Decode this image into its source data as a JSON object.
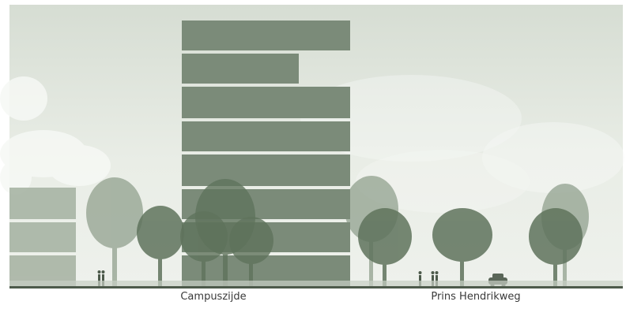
{
  "labels": {
    "left": "Campuszijde",
    "right": "Prins Hendrikweg"
  },
  "colors": {
    "building": "#7b8b79",
    "building_faded": "#a8b4a5",
    "tree": "#5f735c",
    "tree_faded": "#91a08e",
    "sky_top": "#dfe5dd",
    "sky_bottom": "#eef1ec",
    "ground": "#4d5a4b"
  }
}
